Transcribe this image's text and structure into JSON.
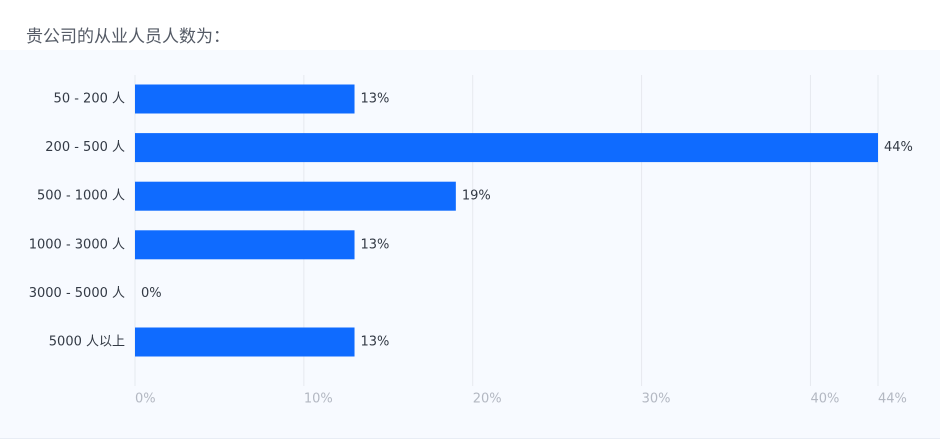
{
  "question": {
    "title": "贵公司的从业人员人数为："
  },
  "chart_data": {
    "type": "bar",
    "orientation": "horizontal",
    "categories": [
      "50 - 200 人",
      "200 - 500 人",
      "500 - 1000 人",
      "1000 - 3000 人",
      "3000 - 5000 人",
      "5000 人以上"
    ],
    "values": [
      13,
      44,
      19,
      13,
      0,
      13
    ],
    "value_labels": [
      "13%",
      "44%",
      "19%",
      "13%",
      "0%",
      "13%"
    ],
    "xlim": [
      0,
      44
    ],
    "x_ticks": [
      0,
      10,
      20,
      30,
      40,
      44
    ],
    "x_tick_labels": [
      "0%",
      "10%",
      "20%",
      "30%",
      "40%",
      "44%"
    ],
    "grid": true,
    "bar_color": "#0f6bff",
    "grid_color": "#e6e9ef"
  }
}
